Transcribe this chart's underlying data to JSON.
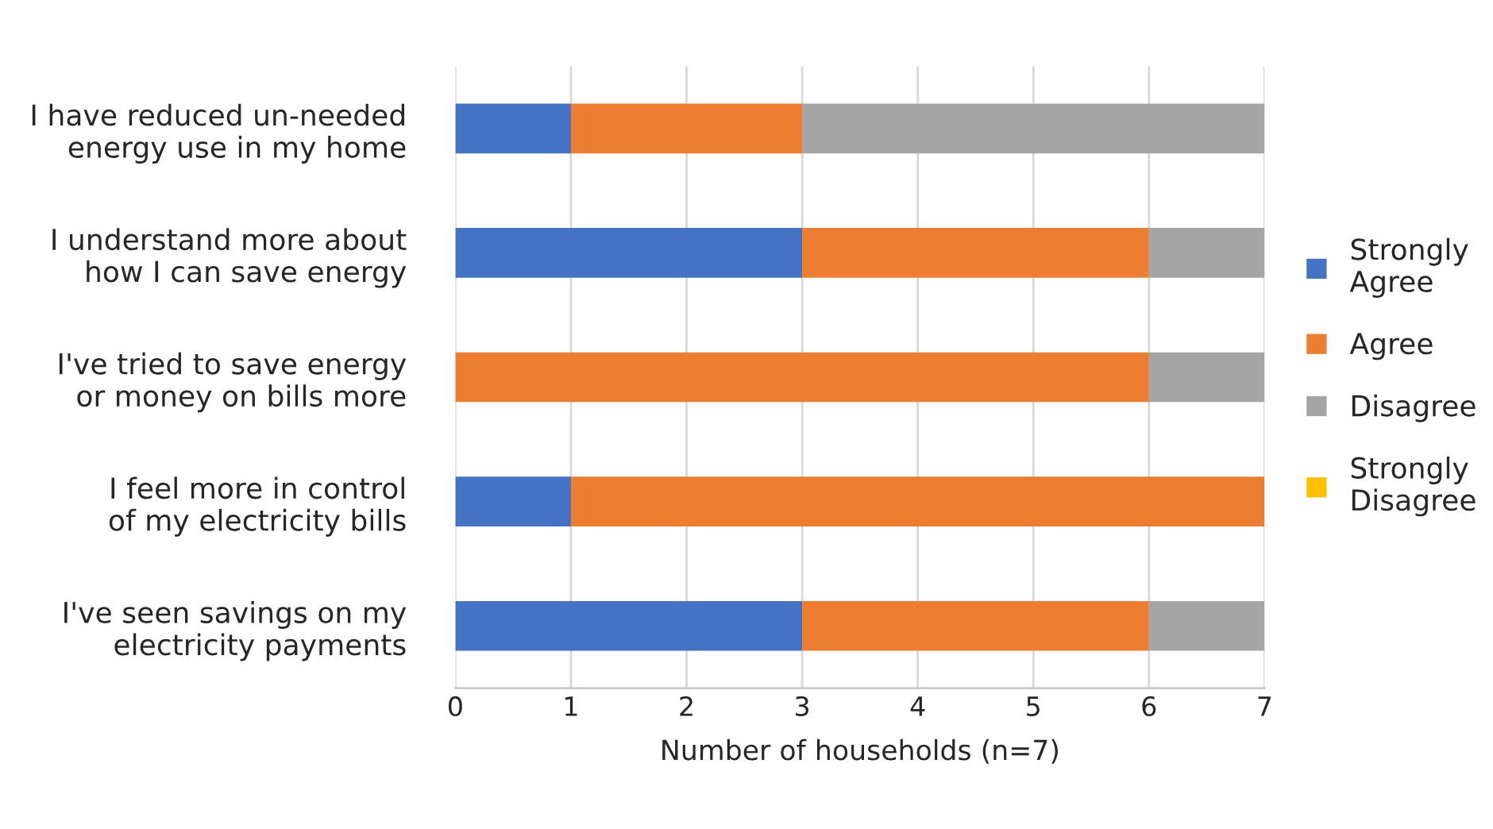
{
  "chart_data": {
    "type": "bar",
    "orientation": "horizontal",
    "stacked": true,
    "categories": [
      "I have reduced un-needed\nenergy use in my home",
      "I understand more about\nhow I can save energy",
      "I've tried to save energy\nor money on bills more",
      "I feel more in control\nof my electricity bills",
      "I've seen savings on my\nelectricity payments"
    ],
    "series": [
      {
        "name": "Strongly\nAgree",
        "color": "#4472c4",
        "values": [
          1,
          3,
          0,
          1,
          3
        ]
      },
      {
        "name": "Agree",
        "color": "#ed7d31",
        "values": [
          2,
          3,
          6,
          6,
          3
        ]
      },
      {
        "name": "Disagree",
        "color": "#a5a5a5",
        "values": [
          4,
          1,
          1,
          0,
          1
        ]
      },
      {
        "name": "Strongly\nDisagree",
        "color": "#ffc000",
        "values": [
          0,
          0,
          0,
          0,
          0
        ]
      }
    ],
    "xlabel": "Number of households (n=7)",
    "xlim": [
      0,
      7
    ],
    "xticks": [
      0,
      1,
      2,
      3,
      4,
      5,
      6,
      7
    ],
    "grid": "x",
    "legend": "right"
  }
}
